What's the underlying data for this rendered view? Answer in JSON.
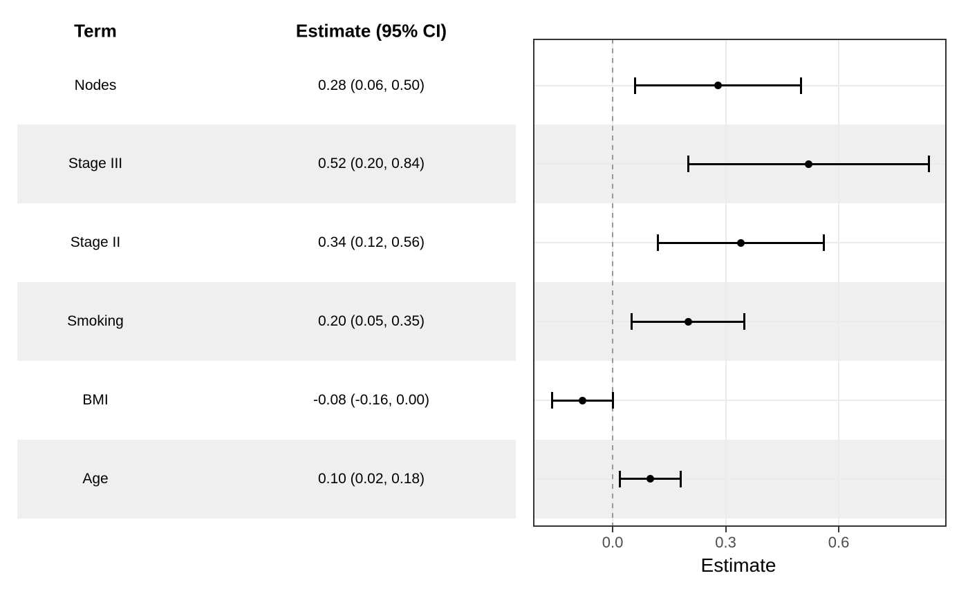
{
  "table": {
    "headers": {
      "term": "Term",
      "estimate": "Estimate (95% CI)"
    },
    "rows": [
      {
        "term": "Nodes",
        "estimate": "0.28 (0.06, 0.50)"
      },
      {
        "term": "Stage III",
        "estimate": "0.52 (0.20, 0.84)"
      },
      {
        "term": "Stage II",
        "estimate": "0.34 (0.12, 0.56)"
      },
      {
        "term": "Smoking",
        "estimate": "0.20 (0.05, 0.35)"
      },
      {
        "term": "BMI",
        "estimate": "-0.08 (-0.16, 0.00)"
      },
      {
        "term": "Age",
        "estimate": "0.10 (0.02, 0.18)"
      }
    ]
  },
  "chart_data": {
    "type": "scatter",
    "variant": "forest-plot",
    "title": "",
    "xlabel": "Estimate",
    "ylabel": "",
    "categories": [
      "Nodes",
      "Stage III",
      "Stage II",
      "Smoking",
      "BMI",
      "Age"
    ],
    "series": [
      {
        "name": "estimate",
        "values": [
          0.28,
          0.52,
          0.34,
          0.2,
          -0.08,
          0.1
        ]
      },
      {
        "name": "ci_lower",
        "values": [
          0.06,
          0.2,
          0.12,
          0.05,
          -0.16,
          0.02
        ]
      },
      {
        "name": "ci_upper",
        "values": [
          0.5,
          0.84,
          0.56,
          0.35,
          0.0,
          0.18
        ]
      }
    ],
    "x_ticks": [
      0.0,
      0.3,
      0.6
    ],
    "x_tick_labels": [
      "0.0",
      "0.3",
      "0.6"
    ],
    "xlim": [
      -0.211,
      0.886
    ],
    "reference_line_x": 0,
    "grid": true,
    "legend_position": "none",
    "striped_rows": [
      "Stage III",
      "Smoking",
      "Age"
    ],
    "colors": {
      "stripe": "#EFEFEF",
      "panel_border": "#333333",
      "gridline": "#EBEBEB",
      "reference_line": "#999999",
      "point": "#000000",
      "errorbar": "#000000",
      "tick_label": "#4D4D4D",
      "text": "#000000",
      "background": "#FFFFFF"
    }
  }
}
